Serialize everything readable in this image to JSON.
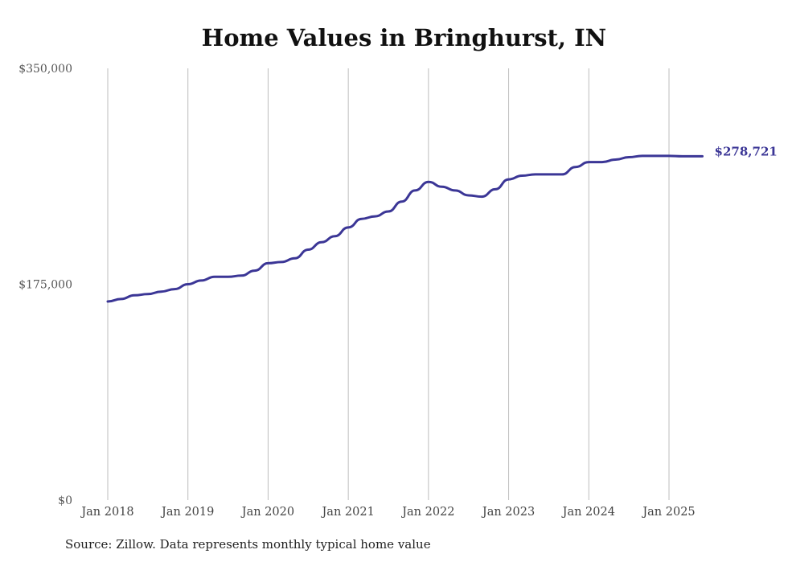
{
  "chart_data": {
    "type": "line",
    "title": "Home Values in Bringhurst, IN",
    "source": "Source: Zillow. Data represents monthly typical home value",
    "ylim": [
      0,
      350000
    ],
    "yticks": [
      "$0",
      "$175,000",
      "$350,000"
    ],
    "ytick_values": [
      0,
      175000,
      350000
    ],
    "xticks": [
      "Jan 2018",
      "Jan 2019",
      "Jan 2020",
      "Jan 2021",
      "Jan 2022",
      "Jan 2023",
      "Jan 2024",
      "Jan 2025"
    ],
    "grid": "vertical",
    "line_color": "#3b3696",
    "end_label": "$278,721",
    "series": [
      {
        "x": [
          "2018-01",
          "2018-03",
          "2018-05",
          "2018-07",
          "2018-09",
          "2018-11",
          "2019-01",
          "2019-03",
          "2019-05",
          "2019-07",
          "2019-09",
          "2019-11",
          "2020-01",
          "2020-03",
          "2020-05",
          "2020-07",
          "2020-09",
          "2020-11",
          "2021-01",
          "2021-03",
          "2021-05",
          "2021-07",
          "2021-09",
          "2021-11",
          "2022-01",
          "2022-03",
          "2022-05",
          "2022-07",
          "2022-09",
          "2022-11",
          "2023-01",
          "2023-03",
          "2023-05",
          "2023-07",
          "2023-09",
          "2023-11",
          "2024-01",
          "2024-03",
          "2024-05",
          "2024-07",
          "2024-09",
          "2024-11",
          "2025-01",
          "2025-03",
          "2025-05",
          "2025-06"
        ],
        "values": [
          161000,
          163000,
          166000,
          167000,
          169000,
          171000,
          175000,
          178000,
          181000,
          181000,
          182000,
          186000,
          192000,
          193000,
          196000,
          203000,
          209000,
          214000,
          221000,
          228000,
          230000,
          234000,
          242000,
          251000,
          258000,
          254000,
          251000,
          247000,
          246000,
          252000,
          260000,
          263000,
          264000,
          264000,
          264000,
          270000,
          274000,
          274000,
          276000,
          278000,
          279000,
          279000,
          279000,
          278721,
          278721,
          278721
        ]
      }
    ]
  }
}
